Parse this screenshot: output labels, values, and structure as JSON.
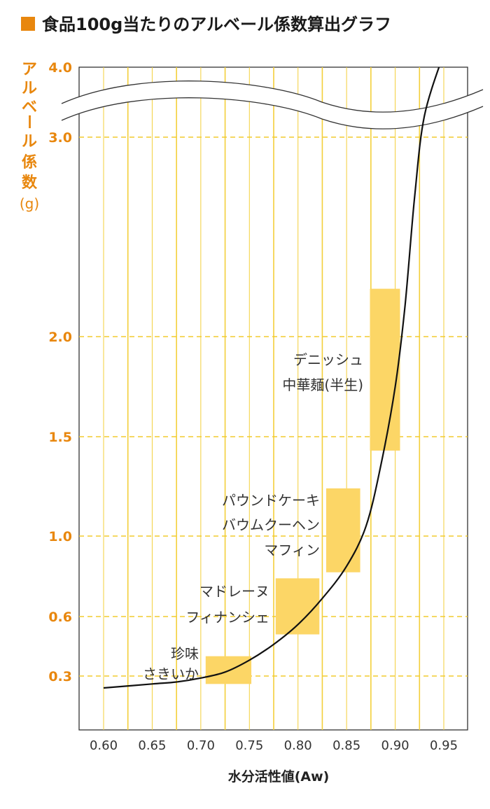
{
  "chart_data": {
    "type": "area",
    "title": "食品100g当たりのアルベール係数算出グラフ",
    "xlabel": "水分活性値(Aw)",
    "ylabel_chars": [
      "ア",
      "ル",
      "ベ",
      "ー",
      "ル",
      "係",
      "数"
    ],
    "ylabel_unit": "(g)",
    "x_ticks": [
      "0.60",
      "0.65",
      "0.70",
      "0.75",
      "0.80",
      "0.85",
      "0.90",
      "0.95"
    ],
    "y_ticks": [
      "0.3",
      "0.6",
      "1.0",
      "1.5",
      "2.0",
      "3.0",
      "4.0"
    ],
    "grid": true,
    "axis_break": "between 3.0 and 4.0",
    "curve": {
      "points": [
        [
          0.6,
          0.24
        ],
        [
          0.65,
          0.26
        ],
        [
          0.675,
          0.27
        ],
        [
          0.7,
          0.29
        ],
        [
          0.725,
          0.32
        ],
        [
          0.75,
          0.38
        ],
        [
          0.775,
          0.46
        ],
        [
          0.8,
          0.56
        ],
        [
          0.825,
          0.69
        ],
        [
          0.85,
          0.85
        ],
        [
          0.87,
          1.05
        ],
        [
          0.885,
          1.35
        ],
        [
          0.9,
          1.75
        ],
        [
          0.91,
          2.15
        ],
        [
          0.92,
          2.7
        ],
        [
          0.93,
          3.3
        ],
        [
          0.95,
          4.2
        ]
      ]
    },
    "ranges": [
      {
        "aw": [
          0.705,
          0.752
        ],
        "alb": [
          0.26,
          0.4
        ],
        "labels": [
          "珍味",
          "さきいか"
        ]
      },
      {
        "aw": [
          0.777,
          0.822
        ],
        "alb": [
          0.51,
          0.79
        ],
        "labels": [
          "マドレーヌ",
          "フィナンシェ"
        ]
      },
      {
        "aw": [
          0.829,
          0.864
        ],
        "alb": [
          0.82,
          1.24
        ],
        "labels": [
          "パウンドケーキ",
          "バウムクーヘン",
          "マフィン"
        ]
      },
      {
        "aw": [
          0.874,
          0.905
        ],
        "alb": [
          1.43,
          2.24
        ],
        "labels": [
          "デニッシュ",
          "中華麺(半生)"
        ]
      }
    ]
  },
  "colors": {
    "accent": "#e8870e",
    "box": "#fcd666",
    "grid_v": "#f3cf3a",
    "grid_h": "#f2cc2e",
    "curve": "#111111"
  }
}
